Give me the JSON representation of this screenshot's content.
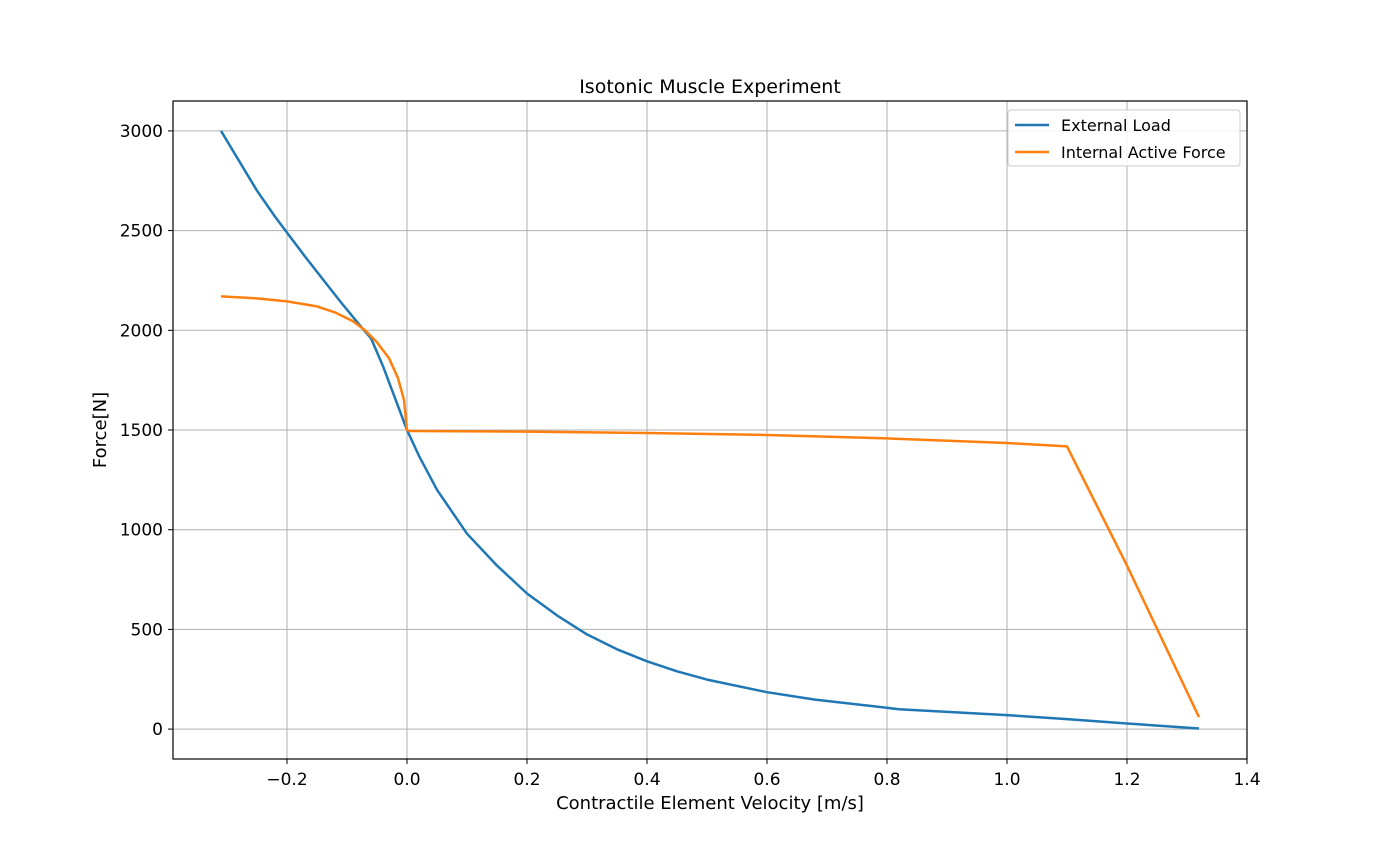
{
  "chart_data": {
    "type": "line",
    "title": "Isotonic Muscle Experiment",
    "xlabel": "Contractile Element Velocity [m/s]",
    "ylabel": "Force[N]",
    "xlim": [
      -0.39,
      1.4
    ],
    "ylim": [
      -150,
      3150
    ],
    "xticks": [
      -0.2,
      0.0,
      0.2,
      0.4,
      0.6,
      0.8,
      1.0,
      1.2,
      1.4
    ],
    "xtick_labels": [
      "−0.2",
      "0.0",
      "0.2",
      "0.4",
      "0.6",
      "0.8",
      "1.0",
      "1.2",
      "1.4"
    ],
    "yticks": [
      0,
      500,
      1000,
      1500,
      2000,
      2500,
      3000
    ],
    "ytick_labels": [
      "0",
      "500",
      "1000",
      "1500",
      "2000",
      "2500",
      "3000"
    ],
    "grid": true,
    "legend_position": "top-right",
    "series": [
      {
        "name": "External Load",
        "color": "#1f77b4",
        "points": [
          [
            -0.31,
            3000
          ],
          [
            -0.28,
            2850
          ],
          [
            -0.25,
            2700
          ],
          [
            -0.22,
            2570
          ],
          [
            -0.2,
            2490
          ],
          [
            -0.17,
            2370
          ],
          [
            -0.14,
            2255
          ],
          [
            -0.11,
            2140
          ],
          [
            -0.08,
            2030
          ],
          [
            -0.06,
            1960
          ],
          [
            -0.04,
            1820
          ],
          [
            -0.02,
            1660
          ],
          [
            0.0,
            1500
          ],
          [
            0.02,
            1370
          ],
          [
            0.05,
            1200
          ],
          [
            0.1,
            980
          ],
          [
            0.15,
            820
          ],
          [
            0.2,
            680
          ],
          [
            0.25,
            570
          ],
          [
            0.3,
            475
          ],
          [
            0.35,
            400
          ],
          [
            0.4,
            340
          ],
          [
            0.45,
            290
          ],
          [
            0.5,
            248
          ],
          [
            0.6,
            185
          ],
          [
            0.68,
            148
          ],
          [
            0.82,
            100
          ],
          [
            1.0,
            70
          ],
          [
            1.1,
            50
          ],
          [
            1.2,
            28
          ],
          [
            1.32,
            3
          ]
        ]
      },
      {
        "name": "Internal Active Force",
        "color": "#ff7f0e",
        "points": [
          [
            -0.31,
            2170
          ],
          [
            -0.25,
            2160
          ],
          [
            -0.2,
            2145
          ],
          [
            -0.15,
            2120
          ],
          [
            -0.12,
            2090
          ],
          [
            -0.09,
            2045
          ],
          [
            -0.07,
            2000
          ],
          [
            -0.05,
            1940
          ],
          [
            -0.03,
            1860
          ],
          [
            -0.015,
            1760
          ],
          [
            -0.005,
            1650
          ],
          [
            0.0,
            1500
          ],
          [
            0.005,
            1495
          ],
          [
            0.2,
            1492
          ],
          [
            0.4,
            1485
          ],
          [
            0.6,
            1475
          ],
          [
            0.8,
            1458
          ],
          [
            1.0,
            1435
          ],
          [
            1.1,
            1418
          ],
          [
            1.2,
            820
          ],
          [
            1.32,
            60
          ]
        ]
      }
    ]
  }
}
